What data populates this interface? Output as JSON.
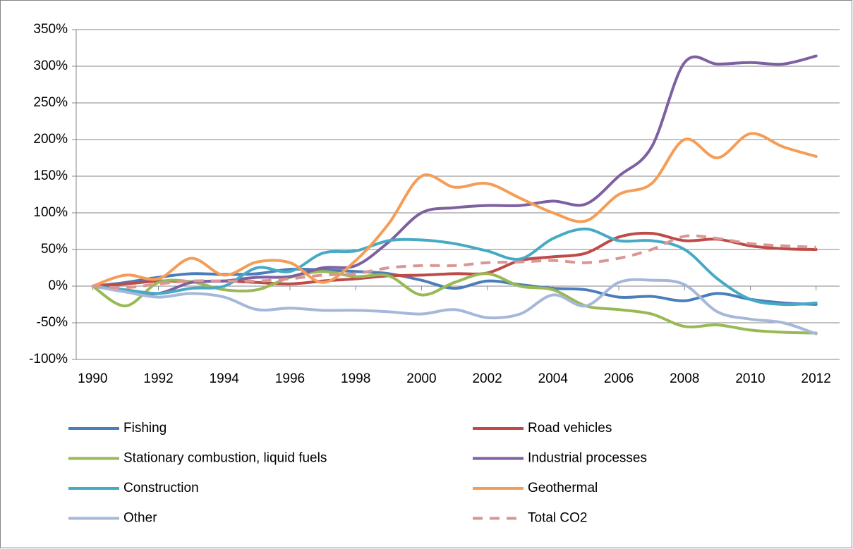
{
  "chart_data": {
    "type": "line",
    "categories": [
      "1990",
      null,
      "1992",
      null,
      "1994",
      null,
      "1996",
      null,
      "1998",
      null,
      "2000",
      null,
      "2002",
      null,
      "2004",
      null,
      "2006",
      null,
      "2008",
      null,
      "2010",
      null,
      "2012"
    ],
    "ylim": [
      -100,
      350
    ],
    "yticks": [
      {
        "value": -100,
        "label": "-100%"
      },
      {
        "value": -50,
        "label": "-50%"
      },
      {
        "value": 0,
        "label": "0%"
      },
      {
        "value": 50,
        "label": "50%"
      },
      {
        "value": 100,
        "label": "100%"
      },
      {
        "value": 150,
        "label": "150%"
      },
      {
        "value": 200,
        "label": "200%"
      },
      {
        "value": 250,
        "label": "250%"
      },
      {
        "value": 300,
        "label": "300%"
      },
      {
        "value": 350,
        "label": "350%"
      }
    ],
    "grid": true,
    "smooth": true,
    "legend": "bottom",
    "series": [
      {
        "name": "Fishing",
        "color": "#4a7ebb",
        "values": [
          0,
          5,
          12,
          17,
          16,
          17,
          23,
          22,
          20,
          17,
          8,
          -3,
          7,
          2,
          -3,
          -5,
          -15,
          -14,
          -20,
          -10,
          -18,
          -23,
          -25
        ]
      },
      {
        "name": "Road vehicles",
        "color": "#be4b48",
        "values": [
          0,
          3,
          7,
          6,
          7,
          5,
          3,
          7,
          10,
          14,
          15,
          17,
          18,
          35,
          40,
          45,
          67,
          72,
          62,
          64,
          55,
          51,
          50
        ]
      },
      {
        "name": "Stationary combustion, liquid fuels",
        "color": "#98b954",
        "values": [
          0,
          -27,
          5,
          6,
          -5,
          -5,
          12,
          20,
          13,
          14,
          -12,
          5,
          17,
          0,
          -5,
          -27,
          -32,
          -38,
          -55,
          -53,
          -60,
          -63,
          -64
        ]
      },
      {
        "name": "Industrial processes",
        "color": "#7d60a0",
        "values": [
          0,
          -7,
          -10,
          5,
          7,
          12,
          13,
          25,
          28,
          60,
          100,
          107,
          110,
          110,
          116,
          112,
          150,
          190,
          305,
          303,
          305,
          303,
          314
        ]
      },
      {
        "name": "Construction",
        "color": "#46aac5",
        "values": [
          0,
          -5,
          -10,
          -3,
          0,
          25,
          20,
          45,
          48,
          62,
          63,
          58,
          48,
          37,
          65,
          78,
          62,
          62,
          50,
          10,
          -18,
          -25,
          -23
        ]
      },
      {
        "name": "Geothermal",
        "color": "#f59d56",
        "values": [
          0,
          15,
          10,
          38,
          15,
          33,
          32,
          5,
          35,
          85,
          150,
          135,
          140,
          120,
          100,
          89,
          125,
          140,
          200,
          175,
          208,
          190,
          177
        ]
      },
      {
        "name": "Other",
        "color": "#a5b8d9",
        "values": [
          0,
          -8,
          -15,
          -10,
          -15,
          -32,
          -30,
          -33,
          -33,
          -35,
          -38,
          -32,
          -43,
          -38,
          -12,
          -27,
          5,
          8,
          2,
          -35,
          -45,
          -50,
          -65
        ]
      },
      {
        "name": "Total CO2",
        "color": "#d99694",
        "line_style": "dashed",
        "values": [
          0,
          -2,
          3,
          7,
          7,
          7,
          10,
          15,
          17,
          25,
          28,
          28,
          32,
          33,
          35,
          32,
          38,
          50,
          68,
          65,
          58,
          55,
          53
        ]
      }
    ]
  }
}
